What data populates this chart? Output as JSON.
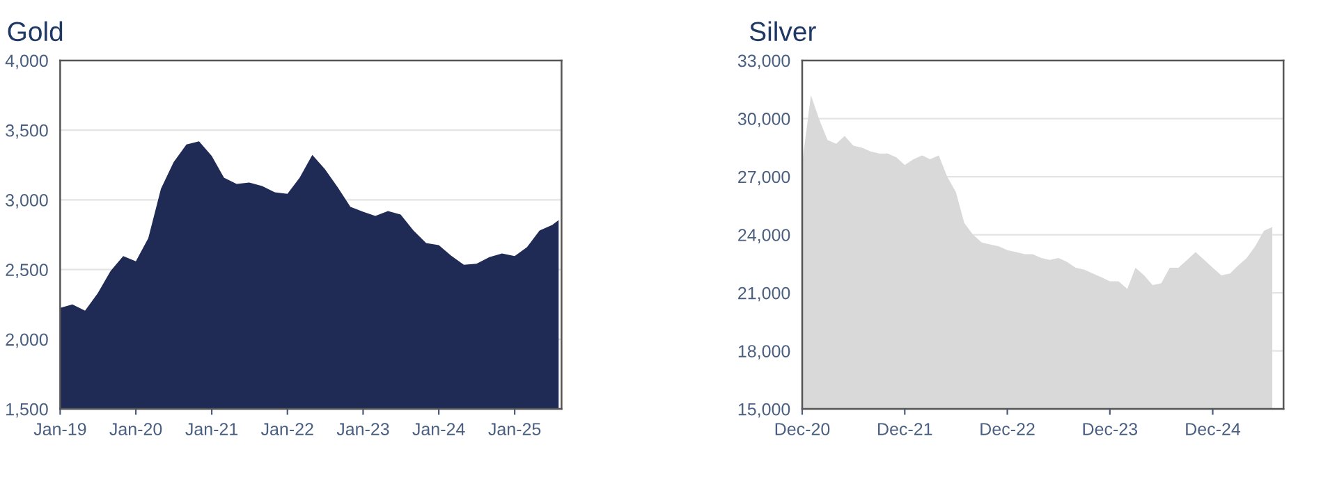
{
  "chart_data": [
    {
      "type": "area",
      "title": "Gold",
      "grid": "y",
      "x": [
        "2019-01",
        "2019-03",
        "2019-05",
        "2019-07",
        "2019-09",
        "2019-11",
        "2020-01",
        "2020-03",
        "2020-05",
        "2020-07",
        "2020-09",
        "2020-11",
        "2021-01",
        "2021-03",
        "2021-05",
        "2021-07",
        "2021-09",
        "2021-11",
        "2022-01",
        "2022-03",
        "2022-05",
        "2022-07",
        "2022-09",
        "2022-11",
        "2023-01",
        "2023-03",
        "2023-05",
        "2023-07",
        "2023-09",
        "2023-11",
        "2024-01",
        "2024-03",
        "2024-05",
        "2024-07",
        "2024-09",
        "2024-11",
        "2025-01",
        "2025-03",
        "2025-05",
        "2025-07",
        "2025-08"
      ],
      "series": [
        {
          "color": "#1f2b55",
          "values": [
            2225,
            2250,
            2205,
            2330,
            2490,
            2597,
            2560,
            2725,
            3080,
            3270,
            3397,
            3420,
            3315,
            3160,
            3115,
            3125,
            3100,
            3055,
            3044,
            3160,
            3323,
            3220,
            3090,
            2950,
            2915,
            2885,
            2920,
            2895,
            2780,
            2690,
            2675,
            2600,
            2535,
            2542,
            2590,
            2616,
            2597,
            2660,
            2780,
            2820,
            2855
          ]
        }
      ],
      "xlim": [
        "2019-01-01",
        "2025-08-15"
      ],
      "xticks": [
        {
          "value": "2019-01",
          "label": "Jan-19"
        },
        {
          "value": "2020-01",
          "label": "Jan-20"
        },
        {
          "value": "2021-01",
          "label": "Jan-21"
        },
        {
          "value": "2022-01",
          "label": "Jan-22"
        },
        {
          "value": "2023-01",
          "label": "Jan-23"
        },
        {
          "value": "2024-01",
          "label": "Jan-24"
        },
        {
          "value": "2025-01",
          "label": "Jan-25"
        }
      ],
      "ylim": [
        1500,
        4000
      ],
      "yticks": [
        {
          "value": 1500,
          "label": "1,500"
        },
        {
          "value": 2000,
          "label": "2,000"
        },
        {
          "value": 2500,
          "label": "2,500"
        },
        {
          "value": 3000,
          "label": "3,000"
        },
        {
          "value": 3500,
          "label": "3,500"
        },
        {
          "value": 4000,
          "label": "4,000"
        }
      ]
    },
    {
      "type": "area",
      "title": "Silver",
      "grid": "y",
      "x": [
        "2020-12",
        "2021-01",
        "2021-02",
        "2021-03",
        "2021-04",
        "2021-05",
        "2021-06",
        "2021-07",
        "2021-08",
        "2021-09",
        "2021-10",
        "2021-11",
        "2021-12",
        "2022-01",
        "2022-02",
        "2022-03",
        "2022-04",
        "2022-05",
        "2022-06",
        "2022-07",
        "2022-08",
        "2022-09",
        "2022-10",
        "2022-11",
        "2022-12",
        "2023-01",
        "2023-02",
        "2023-03",
        "2023-04",
        "2023-05",
        "2023-06",
        "2023-07",
        "2023-08",
        "2023-09",
        "2023-10",
        "2023-11",
        "2023-12",
        "2024-01",
        "2024-02",
        "2024-03",
        "2024-04",
        "2024-05",
        "2024-06",
        "2024-07",
        "2024-08",
        "2024-09",
        "2024-10",
        "2024-11",
        "2024-12",
        "2025-01",
        "2025-02",
        "2025-03",
        "2025-04",
        "2025-05",
        "2025-06",
        "2025-07"
      ],
      "series": [
        {
          "color": "#d9d9d9",
          "values": [
            27700,
            31200,
            29900,
            28900,
            28700,
            29100,
            28600,
            28500,
            28300,
            28200,
            28200,
            28000,
            27600,
            27900,
            28100,
            27900,
            28100,
            27000,
            26200,
            24600,
            24000,
            23600,
            23500,
            23400,
            23200,
            23100,
            23000,
            23000,
            22800,
            22700,
            22800,
            22600,
            22300,
            22200,
            22000,
            21800,
            21600,
            21600,
            21200,
            22300,
            21900,
            21400,
            21500,
            22300,
            22300,
            22700,
            23100,
            22700,
            22300,
            21900,
            22000,
            22400,
            22800,
            23400,
            24200,
            24400
          ]
        }
      ],
      "xlim": [
        "2020-12-01",
        "2025-08-10"
      ],
      "xticks": [
        {
          "value": "2020-12",
          "label": "Dec-20"
        },
        {
          "value": "2021-12",
          "label": "Dec-21"
        },
        {
          "value": "2022-12",
          "label": "Dec-22"
        },
        {
          "value": "2023-12",
          "label": "Dec-23"
        },
        {
          "value": "2024-12",
          "label": "Dec-24"
        }
      ],
      "ylim": [
        15000,
        33000
      ],
      "yticks": [
        {
          "value": 15000,
          "label": "15,000"
        },
        {
          "value": 18000,
          "label": "18,000"
        },
        {
          "value": 21000,
          "label": "21,000"
        },
        {
          "value": 24000,
          "label": "24,000"
        },
        {
          "value": 27000,
          "label": "27,000"
        },
        {
          "value": 30000,
          "label": "30,000"
        },
        {
          "value": 33000,
          "label": "33,000"
        }
      ]
    }
  ]
}
